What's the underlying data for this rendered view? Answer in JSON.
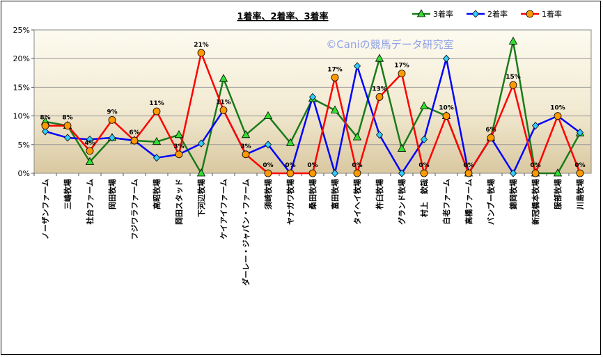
{
  "chart_data": {
    "type": "line",
    "title": "1着率、2着率、3着率",
    "watermark": "©Caniの競馬データ研究室",
    "xlabel": "",
    "ylabel": "",
    "ylim": [
      0,
      25
    ],
    "yticks": [
      "0%",
      "5%",
      "10%",
      "15%",
      "20%",
      "25%"
    ],
    "grid": "horizontal",
    "legend_position": "top-right",
    "categories": [
      "ノーザンファーム",
      "三嶋牧場",
      "社台ファーム",
      "岡田牧場",
      "フジワラファーム",
      "高昭牧場",
      "岡田スタッド",
      "下河辺牧場",
      "ケイアイファーム",
      "ダーレー・ジャパン・ファーム",
      "須崎牧場",
      "ヤナガワ牧場",
      "桑田牧場",
      "富田牧場",
      "タイヘイ牧場",
      "杵臼牧場",
      "グランド牧場",
      "村上　欽哉",
      "白老ファーム",
      "高橋ファーム",
      "バンブー牧場",
      "錦岡牧場",
      "新冠橋本牧場",
      "服部牧場",
      "川島牧場"
    ],
    "series": [
      {
        "name": "3着率",
        "color": "#1a7a1a",
        "marker": "triangle",
        "values": [
          9,
          8.3,
          2,
          6.2,
          5.7,
          5.5,
          6.7,
          0,
          16.5,
          6.7,
          10,
          5.3,
          13,
          11,
          6.3,
          20,
          4.3,
          11.7,
          10,
          0,
          6.2,
          23,
          0,
          0,
          7
        ]
      },
      {
        "name": "2着率",
        "color": "#0000ff",
        "marker": "diamond",
        "values": [
          7.3,
          6.2,
          5.9,
          6.2,
          5.7,
          2.7,
          3.3,
          5.2,
          11,
          3.3,
          5,
          0,
          13.3,
          0,
          18.7,
          6.7,
          0,
          5.9,
          20,
          0,
          6.2,
          0,
          8.3,
          10,
          7.1
        ]
      },
      {
        "name": "1着率",
        "color": "#ff0000",
        "marker": "circle",
        "values": [
          8.3,
          8.3,
          3.9,
          9.3,
          5.7,
          10.8,
          3.3,
          21,
          11,
          3.3,
          0,
          0,
          0,
          16.7,
          0,
          13.3,
          17.4,
          0,
          10,
          0,
          6.2,
          15.4,
          0,
          10,
          0
        ]
      }
    ],
    "data_labels": [
      "8%",
      "8%",
      "4%",
      "9%",
      "6%",
      "11%",
      "3%",
      "21%",
      "11%",
      "3%",
      "0%",
      "0%",
      "0%",
      "17%",
      "0%",
      "13%",
      "17%",
      "0%",
      "10%",
      "0%",
      "6%",
      "15%",
      "0%",
      "10%",
      "0%"
    ]
  }
}
